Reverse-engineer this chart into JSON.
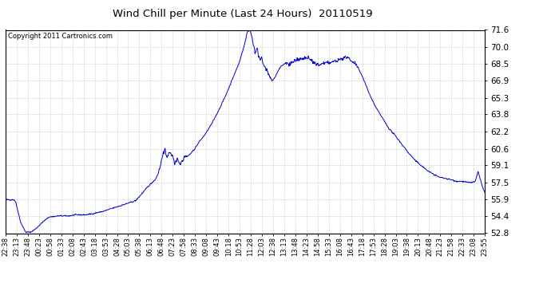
{
  "title": "Wind Chill per Minute (Last 24 Hours)  20110519",
  "copyright": "Copyright 2011 Cartronics.com",
  "yticks": [
    52.8,
    54.4,
    55.9,
    57.5,
    59.1,
    60.6,
    62.2,
    63.8,
    65.3,
    66.9,
    68.5,
    70.0,
    71.6
  ],
  "ymin": 52.8,
  "ymax": 71.6,
  "line_color": "#0000cc",
  "bg_color": "#ffffff",
  "grid_color": "#bbbbbb",
  "title_color": "#000000",
  "xtick_labels": [
    "22:38",
    "23:13",
    "23:48",
    "00:23",
    "00:58",
    "01:33",
    "02:08",
    "02:43",
    "03:18",
    "03:53",
    "04:28",
    "05:03",
    "05:38",
    "06:13",
    "06:48",
    "07:23",
    "07:58",
    "08:33",
    "09:08",
    "09:43",
    "10:18",
    "10:53",
    "11:28",
    "12:03",
    "12:38",
    "13:13",
    "13:48",
    "14:23",
    "14:58",
    "15:33",
    "16:08",
    "16:43",
    "17:18",
    "17:53",
    "18:28",
    "19:03",
    "19:38",
    "20:13",
    "20:48",
    "21:23",
    "21:58",
    "22:33",
    "23:08",
    "23:55"
  ],
  "waypoints": [
    [
      0,
      55.9
    ],
    [
      25,
      55.9
    ],
    [
      30,
      55.7
    ],
    [
      45,
      53.8
    ],
    [
      60,
      52.9
    ],
    [
      75,
      52.9
    ],
    [
      90,
      53.2
    ],
    [
      110,
      53.8
    ],
    [
      130,
      54.3
    ],
    [
      160,
      54.4
    ],
    [
      190,
      54.4
    ],
    [
      210,
      54.5
    ],
    [
      240,
      54.5
    ],
    [
      260,
      54.6
    ],
    [
      290,
      54.8
    ],
    [
      310,
      55.0
    ],
    [
      330,
      55.2
    ],
    [
      360,
      55.5
    ],
    [
      390,
      55.8
    ],
    [
      410,
      56.5
    ],
    [
      430,
      57.2
    ],
    [
      450,
      57.8
    ],
    [
      460,
      58.5
    ],
    [
      470,
      59.8
    ],
    [
      478,
      60.5
    ],
    [
      485,
      59.8
    ],
    [
      492,
      60.3
    ],
    [
      500,
      60.0
    ],
    [
      508,
      59.3
    ],
    [
      515,
      59.5
    ],
    [
      525,
      59.2
    ],
    [
      535,
      59.8
    ],
    [
      550,
      60.0
    ],
    [
      565,
      60.5
    ],
    [
      580,
      61.2
    ],
    [
      600,
      62.0
    ],
    [
      620,
      63.0
    ],
    [
      640,
      64.2
    ],
    [
      660,
      65.5
    ],
    [
      680,
      67.0
    ],
    [
      700,
      68.5
    ],
    [
      715,
      70.0
    ],
    [
      725,
      71.4
    ],
    [
      733,
      71.6
    ],
    [
      740,
      70.8
    ],
    [
      748,
      69.5
    ],
    [
      755,
      70.0
    ],
    [
      762,
      68.8
    ],
    [
      768,
      69.0
    ],
    [
      775,
      68.3
    ],
    [
      782,
      68.0
    ],
    [
      790,
      67.5
    ],
    [
      800,
      66.9
    ],
    [
      808,
      67.2
    ],
    [
      818,
      67.8
    ],
    [
      828,
      68.3
    ],
    [
      840,
      68.5
    ],
    [
      855,
      68.5
    ],
    [
      870,
      68.8
    ],
    [
      885,
      68.8
    ],
    [
      900,
      69.0
    ],
    [
      910,
      68.9
    ],
    [
      920,
      68.7
    ],
    [
      930,
      68.5
    ],
    [
      940,
      68.3
    ],
    [
      950,
      68.5
    ],
    [
      960,
      68.5
    ],
    [
      975,
      68.6
    ],
    [
      990,
      68.7
    ],
    [
      1000,
      68.8
    ],
    [
      1010,
      68.9
    ],
    [
      1020,
      69.0
    ],
    [
      1030,
      69.0
    ],
    [
      1040,
      68.7
    ],
    [
      1050,
      68.5
    ],
    [
      1060,
      68.0
    ],
    [
      1075,
      67.0
    ],
    [
      1090,
      65.8
    ],
    [
      1110,
      64.5
    ],
    [
      1130,
      63.5
    ],
    [
      1150,
      62.5
    ],
    [
      1170,
      61.8
    ],
    [
      1190,
      61.0
    ],
    [
      1210,
      60.2
    ],
    [
      1230,
      59.5
    ],
    [
      1250,
      59.0
    ],
    [
      1270,
      58.5
    ],
    [
      1300,
      58.0
    ],
    [
      1330,
      57.8
    ],
    [
      1355,
      57.6
    ],
    [
      1370,
      57.6
    ],
    [
      1385,
      57.5
    ],
    [
      1400,
      57.5
    ],
    [
      1410,
      57.6
    ],
    [
      1418,
      58.5
    ],
    [
      1425,
      57.8
    ],
    [
      1432,
      57.0
    ],
    [
      1439,
      56.5
    ]
  ]
}
